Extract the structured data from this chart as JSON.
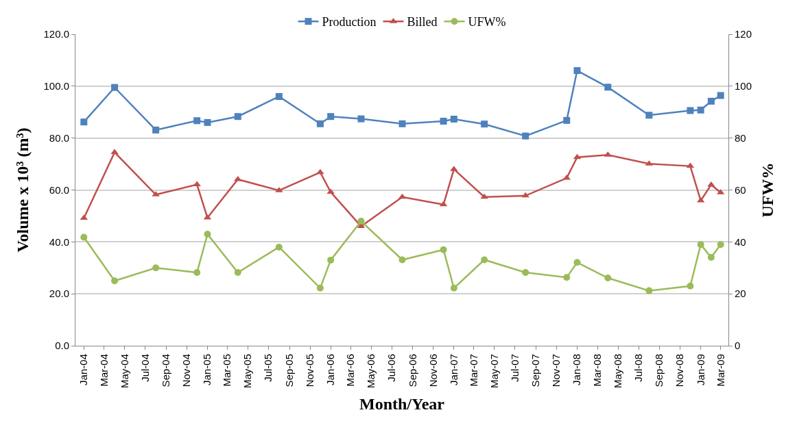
{
  "chart_data": {
    "type": "line",
    "xlabel": "Month/Year",
    "ylabel": "Volume x 10³ (m³)",
    "y2label": "UFW%",
    "x": [
      "2004-01",
      "2004-04",
      "2004-08",
      "2004-12",
      "2005-01",
      "2005-04",
      "2005-08",
      "2005-12",
      "2006-01",
      "2006-04",
      "2006-08",
      "2006-12",
      "2007-01",
      "2007-04",
      "2007-08",
      "2007-12",
      "2008-01",
      "2008-04",
      "2008-08",
      "2008-12",
      "2009-01",
      "2009-02",
      "2009-03"
    ],
    "series": [
      {
        "name": "Production",
        "color": "#4f81bd",
        "marker": "square",
        "values": [
          86.2,
          99.5,
          83.1,
          86.7,
          86.0,
          88.3,
          96.0,
          85.5,
          88.3,
          87.4,
          85.5,
          86.5,
          87.3,
          85.4,
          80.8,
          86.8,
          106.0,
          99.6,
          88.8,
          90.6,
          90.8,
          94.2,
          96.4
        ]
      },
      {
        "name": "Billed",
        "color": "#c0504d",
        "marker": "triangle",
        "values": [
          49.2,
          74.5,
          58.2,
          62.1,
          49.3,
          64.1,
          59.8,
          66.8,
          59.2,
          46.0,
          57.3,
          54.4,
          68.0,
          57.3,
          57.8,
          64.6,
          72.6,
          73.5,
          70.1,
          69.2,
          55.9,
          62.0,
          59.0
        ]
      },
      {
        "name": "UFW%",
        "color": "#9bbb59",
        "marker": "circle",
        "axis": "y2",
        "values": [
          41.8,
          25.0,
          30.0,
          28.2,
          43.0,
          28.2,
          38.0,
          22.2,
          33.0,
          48.0,
          33.1,
          37.0,
          22.2,
          33.1,
          28.2,
          26.3,
          32.1,
          26.1,
          21.2,
          23.0,
          39.0,
          34.0,
          39.0
        ]
      }
    ],
    "xlim": [
      "2003-12-07",
      "2009-03-24"
    ],
    "xticks": [
      {
        "value": "2004-01",
        "label": "Jan-04"
      },
      {
        "value": "2004-03",
        "label": "Mar-04"
      },
      {
        "value": "2004-05",
        "label": "May-04"
      },
      {
        "value": "2004-07",
        "label": "Jul-04"
      },
      {
        "value": "2004-09",
        "label": "Sep-04"
      },
      {
        "value": "2004-11",
        "label": "Nov-04"
      },
      {
        "value": "2005-01",
        "label": "Jan-05"
      },
      {
        "value": "2005-03",
        "label": "Mar-05"
      },
      {
        "value": "2005-05",
        "label": "May-05"
      },
      {
        "value": "2005-07",
        "label": "Jul-05"
      },
      {
        "value": "2005-09",
        "label": "Sep-05"
      },
      {
        "value": "2005-11",
        "label": "Nov-05"
      },
      {
        "value": "2006-01",
        "label": "Jan-06"
      },
      {
        "value": "2006-03",
        "label": "Mar-06"
      },
      {
        "value": "2006-05",
        "label": "May-06"
      },
      {
        "value": "2006-07",
        "label": "Jul-06"
      },
      {
        "value": "2006-09",
        "label": "Sep-06"
      },
      {
        "value": "2006-11",
        "label": "Nov-06"
      },
      {
        "value": "2007-01",
        "label": "Jan-07"
      },
      {
        "value": "2007-03",
        "label": "Mar-07"
      },
      {
        "value": "2007-05",
        "label": "May-07"
      },
      {
        "value": "2007-07",
        "label": "Jul-07"
      },
      {
        "value": "2007-09",
        "label": "Sep-07"
      },
      {
        "value": "2007-11",
        "label": "Nov-07"
      },
      {
        "value": "2008-01",
        "label": "Jan-08"
      },
      {
        "value": "2008-03",
        "label": "Mar-08"
      },
      {
        "value": "2008-05",
        "label": "May-08"
      },
      {
        "value": "2008-07",
        "label": "Jul-08"
      },
      {
        "value": "2008-09",
        "label": "Sep-08"
      },
      {
        "value": "2008-11",
        "label": "Nov-08"
      },
      {
        "value": "2009-01",
        "label": "Jan-09"
      },
      {
        "value": "2009-03",
        "label": "Mar-09"
      }
    ],
    "ylim": [
      0,
      120
    ],
    "yticks": [
      {
        "value": 0,
        "label": "0.0"
      },
      {
        "value": 20,
        "label": "20.0"
      },
      {
        "value": 40,
        "label": "40.0"
      },
      {
        "value": 60,
        "label": "60.0"
      },
      {
        "value": 80,
        "label": "80.0"
      },
      {
        "value": 100,
        "label": "100.0"
      },
      {
        "value": 120,
        "label": "120.0"
      }
    ],
    "y2lim": [
      0,
      120
    ],
    "y2ticks": [
      0,
      20,
      40,
      60,
      80,
      100,
      120
    ],
    "grid": "y",
    "legend": "top",
    "line_style": "solid"
  }
}
